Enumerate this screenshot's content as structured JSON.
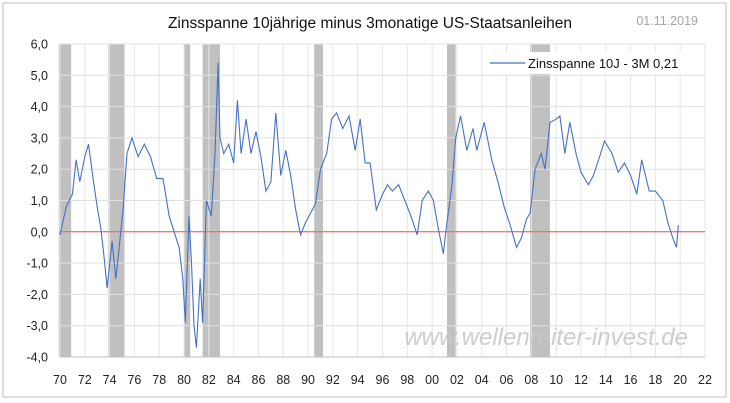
{
  "chart_data": {
    "type": "line",
    "title": "Zinsspanne 10jährige minus 3monatige US-Staatsanleihen",
    "date": "01.11.2019",
    "watermark": "www.wellenreiter-invest.de",
    "xlabel": "",
    "ylabel": "",
    "xlim": [
      1970,
      2022
    ],
    "ylim": [
      -4,
      6
    ],
    "grid": true,
    "legend_position": "top-right",
    "x_tick_labels": [
      "70",
      "72",
      "74",
      "76",
      "78",
      "80",
      "82",
      "84",
      "86",
      "88",
      "90",
      "92",
      "94",
      "96",
      "98",
      "00",
      "02",
      "04",
      "06",
      "08",
      "10",
      "12",
      "14",
      "16",
      "18",
      "20",
      "22"
    ],
    "y_tick_labels": [
      "6,0",
      "5,0",
      "4,0",
      "3,0",
      "2,0",
      "1,0",
      "0,0",
      "-1,0",
      "-2,0",
      "-3,0",
      "-4,0"
    ],
    "y_ticks": [
      6,
      5,
      4,
      3,
      2,
      1,
      0,
      -1,
      -2,
      -3,
      -4
    ],
    "reference_line": {
      "y": 0,
      "color": "#ff4d4d"
    },
    "recessions": [
      [
        1969.9,
        1970.9
      ],
      [
        1973.9,
        1975.2
      ],
      [
        1980.0,
        1980.5
      ],
      [
        1981.5,
        1982.9
      ],
      [
        1990.5,
        1991.2
      ],
      [
        2001.2,
        2001.9
      ],
      [
        2007.9,
        2009.5
      ]
    ],
    "recession_color": "#c0c0c0",
    "series": [
      {
        "name": "Zinsspanne 10J - 3M 0,21",
        "color": "#4472c4",
        "x": [
          1970.0,
          1970.5,
          1971.0,
          1971.3,
          1971.6,
          1972.0,
          1972.3,
          1972.7,
          1973.0,
          1973.3,
          1973.6,
          1973.8,
          1974.2,
          1974.5,
          1974.8,
          1975.1,
          1975.4,
          1975.8,
          1976.3,
          1976.8,
          1977.3,
          1977.8,
          1978.3,
          1978.8,
          1979.2,
          1979.6,
          1979.9,
          1980.1,
          1980.4,
          1980.6,
          1980.8,
          1981.0,
          1981.3,
          1981.5,
          1981.8,
          1982.2,
          1982.5,
          1982.75,
          1982.9,
          1983.2,
          1983.6,
          1984.0,
          1984.3,
          1984.6,
          1985.0,
          1985.4,
          1985.8,
          1986.2,
          1986.6,
          1987.0,
          1987.4,
          1987.8,
          1988.2,
          1988.6,
          1989.0,
          1989.4,
          1989.8,
          1990.2,
          1990.6,
          1991.0,
          1991.5,
          1991.9,
          1992.3,
          1992.8,
          1993.3,
          1993.8,
          1994.2,
          1994.6,
          1995.0,
          1995.5,
          1996.0,
          1996.4,
          1996.8,
          1997.3,
          1997.8,
          1998.3,
          1998.8,
          1999.2,
          1999.7,
          2000.1,
          2000.5,
          2000.9,
          2001.2,
          2001.6,
          2001.9,
          2002.3,
          2002.8,
          2003.3,
          2003.6,
          2004.2,
          2004.8,
          2005.3,
          2005.8,
          2006.3,
          2006.8,
          2007.2,
          2007.6,
          2007.9,
          2008.3,
          2008.8,
          2009.1,
          2009.5,
          2010.0,
          2010.3,
          2010.7,
          2011.1,
          2011.6,
          2012.0,
          2012.6,
          2013.0,
          2013.5,
          2013.9,
          2014.5,
          2015.0,
          2015.5,
          2016.0,
          2016.5,
          2016.9,
          2017.5,
          2018.0,
          2018.6,
          2019.0,
          2019.4,
          2019.7,
          2019.85
        ],
        "values": [
          -0.1,
          0.8,
          1.2,
          2.3,
          1.6,
          2.4,
          2.8,
          1.6,
          0.8,
          0.1,
          -1.0,
          -1.8,
          -0.3,
          -1.5,
          -0.4,
          0.8,
          2.5,
          3.0,
          2.4,
          2.8,
          2.4,
          1.7,
          1.7,
          0.5,
          0.0,
          -0.5,
          -1.5,
          -2.9,
          0.5,
          -1.0,
          -3.0,
          -3.7,
          -1.5,
          -2.9,
          1.0,
          0.5,
          2.5,
          5.4,
          3.0,
          2.5,
          2.8,
          2.2,
          4.2,
          2.5,
          3.6,
          2.5,
          3.2,
          2.4,
          1.3,
          1.6,
          3.8,
          1.8,
          2.6,
          1.8,
          0.7,
          -0.1,
          0.3,
          0.6,
          0.9,
          2.0,
          2.5,
          3.6,
          3.8,
          3.3,
          3.7,
          2.6,
          3.6,
          2.2,
          2.2,
          0.7,
          1.2,
          1.5,
          1.3,
          1.5,
          1.0,
          0.5,
          -0.1,
          1.0,
          1.3,
          1.0,
          0.1,
          -0.7,
          0.3,
          1.5,
          3.0,
          3.7,
          2.6,
          3.3,
          2.6,
          3.5,
          2.3,
          1.6,
          0.8,
          0.2,
          -0.5,
          -0.2,
          0.4,
          0.6,
          2.0,
          2.5,
          2.0,
          3.5,
          3.6,
          3.7,
          2.5,
          3.5,
          2.5,
          1.9,
          1.5,
          1.8,
          2.4,
          2.9,
          2.5,
          1.9,
          2.2,
          1.8,
          1.2,
          2.3,
          1.3,
          1.3,
          1.0,
          0.3,
          -0.2,
          -0.5,
          0.21
        ]
      }
    ]
  }
}
